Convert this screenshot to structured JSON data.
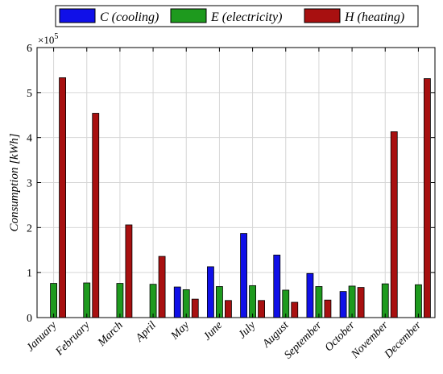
{
  "chart_data": {
    "type": "bar",
    "categories": [
      "January",
      "February",
      "March",
      "April",
      "May",
      "June",
      "July",
      "August",
      "September",
      "October",
      "November",
      "December"
    ],
    "series": [
      {
        "name": "C (cooling)",
        "color": "#1010e8",
        "values": [
          0,
          0,
          0,
          0,
          0.68,
          1.13,
          1.87,
          1.39,
          0.98,
          0.58,
          0,
          0
        ]
      },
      {
        "name": "E (electricity)",
        "color": "#1e9a1e",
        "values": [
          0.76,
          0.77,
          0.76,
          0.74,
          0.62,
          0.69,
          0.71,
          0.61,
          0.69,
          0.7,
          0.75,
          0.73
        ]
      },
      {
        "name": "H (heating)",
        "color": "#a81010",
        "values": [
          5.33,
          4.54,
          2.06,
          1.36,
          0.41,
          0.38,
          0.38,
          0.34,
          0.39,
          0.67,
          4.13,
          5.31
        ]
      }
    ],
    "ylabel": "Consumption [kWh]",
    "y_multiplier": "×10",
    "y_exponent": "5",
    "ylim": [
      0,
      6
    ],
    "yticks": [
      "0",
      "1",
      "2",
      "3",
      "4",
      "5",
      "6"
    ],
    "grid": true,
    "legend_position": "top"
  }
}
